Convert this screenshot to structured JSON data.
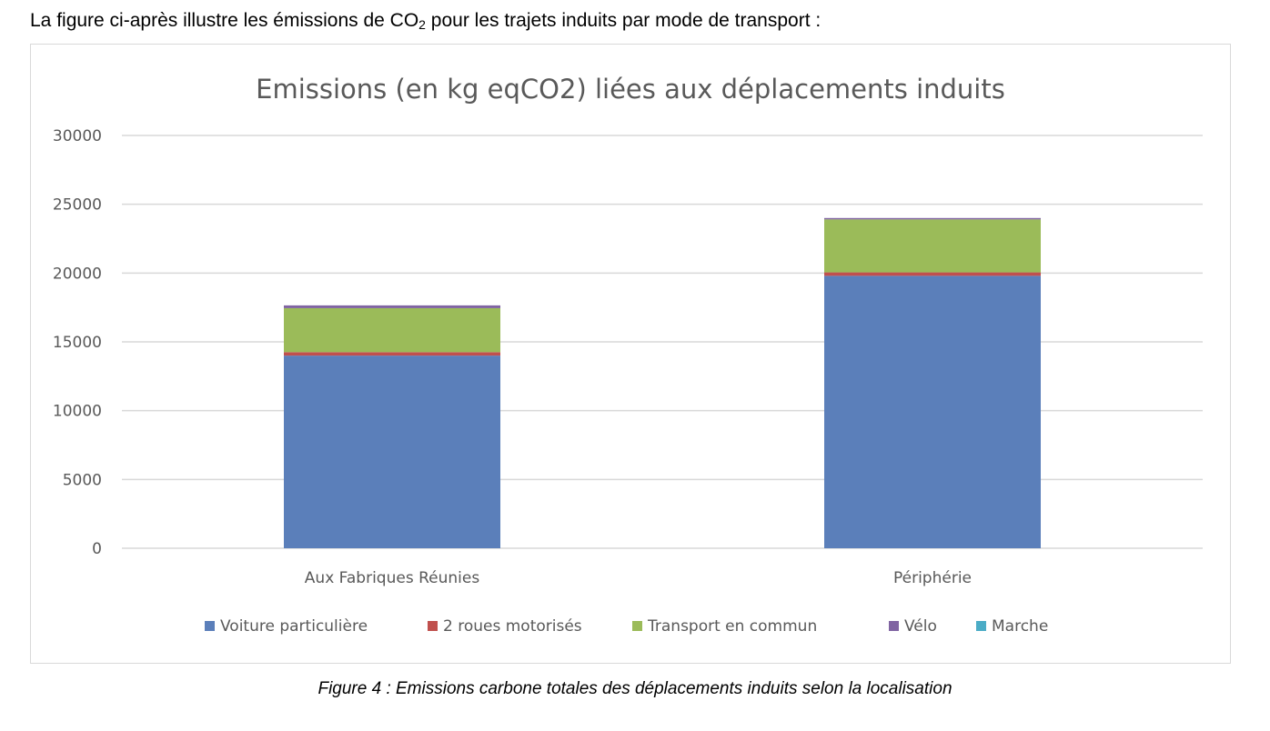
{
  "intro": {
    "before": "La figure ci-après illustre les émissions de CO",
    "sub": "2",
    "after": " pour les trajets induits par mode de transport :"
  },
  "caption": "Figure 4 : Emissions carbone totales des déplacements induits selon la localisation",
  "chart_data": {
    "type": "bar",
    "stacked": true,
    "title": "Emissions (en kg eqCO2) liées aux déplacements induits",
    "xlabel": "",
    "ylabel": "",
    "ylim": [
      0,
      30000
    ],
    "yticks": [
      0,
      5000,
      10000,
      15000,
      20000,
      25000,
      30000
    ],
    "grid": true,
    "legend_position": "bottom",
    "categories": [
      "Aux Fabriques Réunies",
      "Périphérie"
    ],
    "series": [
      {
        "name": "Voiture particulière",
        "color": "#5b7fba",
        "values": [
          14000,
          19800
        ]
      },
      {
        "name": "2 roues motorisés",
        "color": "#c0504d",
        "values": [
          250,
          250
        ]
      },
      {
        "name": "Transport en commun",
        "color": "#9bbb59",
        "values": [
          3200,
          3850
        ]
      },
      {
        "name": "Vélo",
        "color": "#8064a2",
        "values": [
          200,
          100
        ]
      },
      {
        "name": "Marche",
        "color": "#4bacc6",
        "values": [
          0,
          0
        ]
      }
    ],
    "colors": {
      "gridline": "#d9d9d9",
      "axis_text": "#595959",
      "title_text": "#595959"
    }
  }
}
